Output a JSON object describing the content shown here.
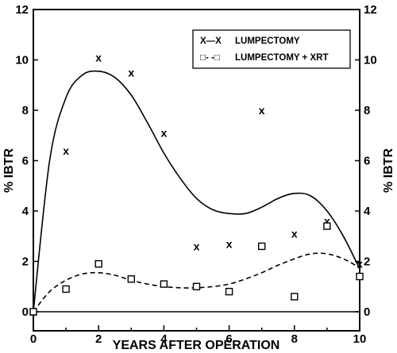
{
  "chart_data": {
    "type": "scatter",
    "xlabel": "YEARS AFTER OPERATION",
    "ylabel_left": "% IBTR",
    "ylabel_right": "% IBTR",
    "xlim": [
      0,
      10
    ],
    "ylim": [
      0,
      12
    ],
    "x_ticks": [
      0,
      2,
      4,
      6,
      8,
      10
    ],
    "y_ticks": [
      0,
      2,
      4,
      6,
      8,
      10,
      12
    ],
    "grid": false,
    "legend_position": "top-right",
    "series": [
      {
        "name": "LUMPECTOMY",
        "legend_symbol": "X—X",
        "marker": "x",
        "marker_glyph": "x",
        "line_style": "solid",
        "points": [
          {
            "x": 0,
            "y": 0
          },
          {
            "x": 1,
            "y": 6.4
          },
          {
            "x": 2,
            "y": 10.1
          },
          {
            "x": 3,
            "y": 9.5
          },
          {
            "x": 4,
            "y": 7.1
          },
          {
            "x": 5,
            "y": 2.6
          },
          {
            "x": 6,
            "y": 2.7
          },
          {
            "x": 7,
            "y": 8.0
          },
          {
            "x": 8,
            "y": 3.1
          },
          {
            "x": 9,
            "y": 3.6
          },
          {
            "x": 10,
            "y": 1.9
          }
        ],
        "fit_curve": [
          {
            "x": 0,
            "y": 0
          },
          {
            "x": 0.5,
            "y": 6.0
          },
          {
            "x": 1,
            "y": 8.5
          },
          {
            "x": 1.5,
            "y": 9.4
          },
          {
            "x": 2,
            "y": 9.55
          },
          {
            "x": 2.5,
            "y": 9.3
          },
          {
            "x": 3,
            "y": 8.6
          },
          {
            "x": 3.5,
            "y": 7.5
          },
          {
            "x": 4,
            "y": 6.3
          },
          {
            "x": 4.5,
            "y": 5.3
          },
          {
            "x": 5,
            "y": 4.5
          },
          {
            "x": 5.5,
            "y": 4.05
          },
          {
            "x": 6,
            "y": 3.9
          },
          {
            "x": 6.5,
            "y": 3.9
          },
          {
            "x": 7,
            "y": 4.15
          },
          {
            "x": 7.5,
            "y": 4.5
          },
          {
            "x": 8,
            "y": 4.7
          },
          {
            "x": 8.5,
            "y": 4.6
          },
          {
            "x": 9,
            "y": 4.0
          },
          {
            "x": 9.5,
            "y": 3.0
          },
          {
            "x": 10,
            "y": 1.7
          }
        ]
      },
      {
        "name": "LUMPECTOMY + XRT",
        "legend_symbol": "□- -□",
        "marker": "square",
        "line_style": "dashed",
        "points": [
          {
            "x": 0,
            "y": 0
          },
          {
            "x": 1,
            "y": 0.9
          },
          {
            "x": 2,
            "y": 1.9
          },
          {
            "x": 3,
            "y": 1.3
          },
          {
            "x": 4,
            "y": 1.1
          },
          {
            "x": 5,
            "y": 1.0
          },
          {
            "x": 6,
            "y": 0.8
          },
          {
            "x": 7,
            "y": 2.6
          },
          {
            "x": 8,
            "y": 0.6
          },
          {
            "x": 9,
            "y": 3.4
          },
          {
            "x": 10,
            "y": 1.4
          }
        ],
        "fit_curve": [
          {
            "x": 0,
            "y": 0
          },
          {
            "x": 0.5,
            "y": 0.8
          },
          {
            "x": 1,
            "y": 1.25
          },
          {
            "x": 1.5,
            "y": 1.5
          },
          {
            "x": 2,
            "y": 1.55
          },
          {
            "x": 2.5,
            "y": 1.45
          },
          {
            "x": 3,
            "y": 1.25
          },
          {
            "x": 3.5,
            "y": 1.1
          },
          {
            "x": 4,
            "y": 1.0
          },
          {
            "x": 4.5,
            "y": 0.95
          },
          {
            "x": 5,
            "y": 0.95
          },
          {
            "x": 5.5,
            "y": 1.0
          },
          {
            "x": 6,
            "y": 1.1
          },
          {
            "x": 6.5,
            "y": 1.3
          },
          {
            "x": 7,
            "y": 1.55
          },
          {
            "x": 7.5,
            "y": 1.85
          },
          {
            "x": 8,
            "y": 2.1
          },
          {
            "x": 8.5,
            "y": 2.3
          },
          {
            "x": 9,
            "y": 2.3
          },
          {
            "x": 9.5,
            "y": 2.1
          },
          {
            "x": 10,
            "y": 1.75
          }
        ]
      }
    ]
  }
}
